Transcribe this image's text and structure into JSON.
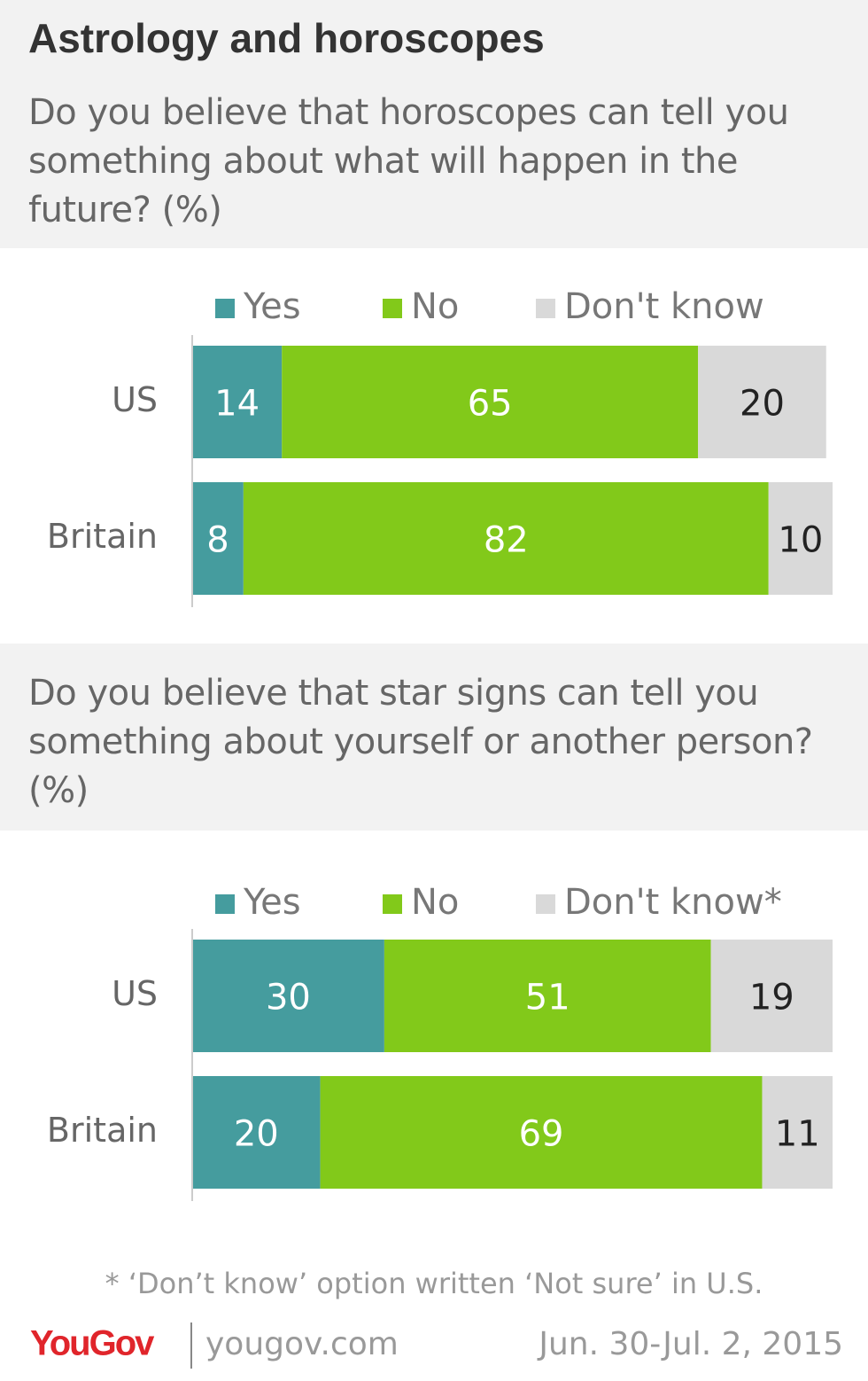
{
  "title": "Astrology and horoscopes",
  "chart_data": [
    {
      "type": "stacked_bar",
      "title": "Do you believe that horoscopes can tell you something about what will happen in the future? (%)",
      "categories": [
        "US",
        "Britain"
      ],
      "series": [
        {
          "name": "Yes",
          "color": "#459c9e",
          "values": [
            14,
            8
          ]
        },
        {
          "name": "No",
          "color": "#82c91a",
          "values": [
            65,
            82
          ]
        },
        {
          "name": "Don't know",
          "color": "#d9d9d9",
          "values": [
            20,
            10
          ]
        }
      ],
      "xlim": [
        0,
        100
      ]
    },
    {
      "type": "stacked_bar",
      "title": "Do you believe that star signs can tell you something about yourself or another person? (%)",
      "categories": [
        "US",
        "Britain"
      ],
      "series": [
        {
          "name": "Yes",
          "color": "#459c9e",
          "values": [
            30,
            20
          ]
        },
        {
          "name": "No",
          "color": "#82c91a",
          "values": [
            51,
            69
          ]
        },
        {
          "name": "Don't know*",
          "color": "#d9d9d9",
          "values": [
            19,
            11
          ]
        }
      ],
      "xlim": [
        0,
        100
      ]
    }
  ],
  "footnote": "* ‘Don’t know’ option written ‘Not sure’ in U.S.",
  "footer": {
    "logo": "YouGov",
    "website": "yougov.com",
    "date": "Jun. 30-Jul. 2, 2015"
  }
}
